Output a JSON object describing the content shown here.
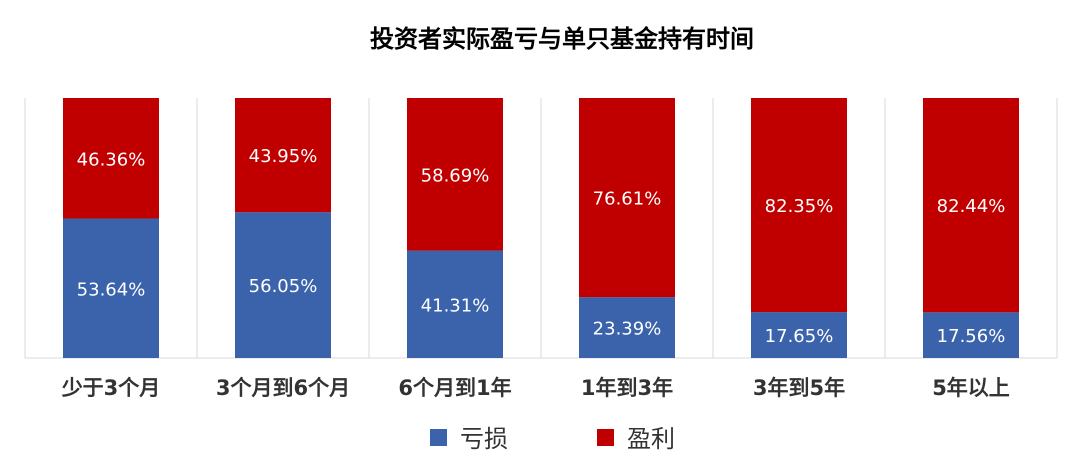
{
  "chart_data": {
    "type": "bar",
    "stacked": true,
    "percent_stacked": true,
    "title": "投资者实际盈亏与单只基金持有时间",
    "categories": [
      "少于3个月",
      "3个月到6个月",
      "6个月到1年",
      "1年到3年",
      "3年到5年",
      "5年以上"
    ],
    "series": [
      {
        "name": "亏损",
        "color": "#3A63AC",
        "values": [
          53.64,
          56.05,
          41.31,
          23.39,
          17.65,
          17.56
        ],
        "labels": [
          "53.64%",
          "56.05%",
          "41.31%",
          "23.39%",
          "17.65%",
          "17.56%"
        ]
      },
      {
        "name": "盈利",
        "color": "#C00000",
        "values": [
          46.36,
          43.95,
          58.69,
          76.61,
          82.35,
          82.44
        ],
        "labels": [
          "46.36%",
          "43.95%",
          "58.69%",
          "76.61%",
          "82.35%",
          "82.44%"
        ]
      }
    ],
    "ylim": [
      0,
      100
    ],
    "grid": false,
    "legend_position": "bottom"
  }
}
